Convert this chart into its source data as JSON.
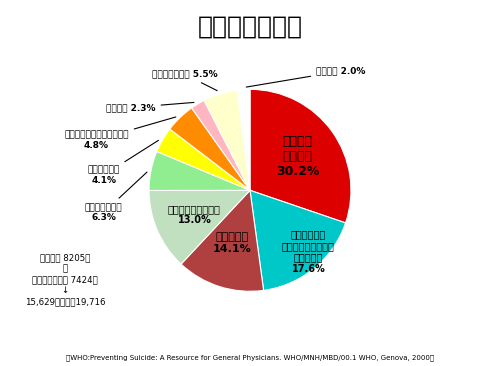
{
  "title": "自殺と精神障害",
  "slices": [
    {
      "label": "うつ病・\n躁うつ病\n30.2%",
      "value": 30.2,
      "color": "#dd0000"
    },
    {
      "label": "物質関連障害\n（アルコール・薬物\n依存など）\n17.6%",
      "value": 17.6,
      "color": "#00c8c8"
    },
    {
      "label": "統合失調症\n14.1%",
      "value": 14.1,
      "color": "#b04040"
    },
    {
      "label": "バーソナリティ障害\n13.0%",
      "value": 13.0,
      "color": "#c0e0c0"
    },
    {
      "label": "器質的精神障害\n6.3%",
      "value": 6.3,
      "color": "#90ee90"
    },
    {
      "label": "他の精神障害\n4.1%",
      "value": 4.1,
      "color": "#ffff00"
    },
    {
      "label": "不安障害・身体表現性障害\n4.8%",
      "value": 4.8,
      "color": "#ff8c00"
    },
    {
      "label": "適応障害 2.3%",
      "value": 2.3,
      "color": "#ffb6c1"
    },
    {
      "label": "他の第１軸診断 5.5%",
      "value": 5.5,
      "color": "#ffffcc"
    },
    {
      "label": "診断なし 2.0%",
      "value": 2.0,
      "color": "#ffffff"
    }
  ],
  "subtitle": "（WHO:Preventing Suicide: A Resource for General Physicians. WHO/MNH/MBD/00.1 WHO, Genova, 2000）",
  "note1": "地域調査 8205例",
  "note2": "＋",
  "note3": "精神科入院患者 7424例",
  "note4": "↓",
  "note5": "15,629例：診断19,716",
  "background_color": "#ffffff",
  "startangle": 90
}
